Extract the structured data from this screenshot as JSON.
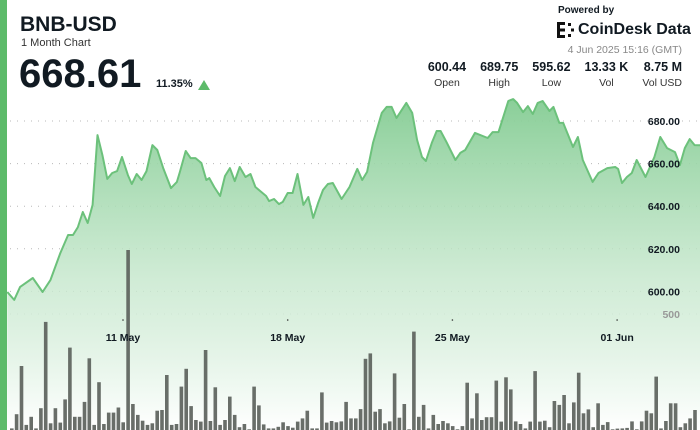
{
  "header": {
    "symbol": "BNB-USD",
    "subtitle": "1 Month Chart",
    "price": "668.61",
    "change": "11.35%",
    "change_direction": "up",
    "powered_by": "Powered by",
    "brand": "CoinDesk Data",
    "timestamp": "4 Jun 2025 15:16 (GMT)",
    "stats": [
      {
        "value": "600.44",
        "label": "Open"
      },
      {
        "value": "689.75",
        "label": "High"
      },
      {
        "value": "595.62",
        "label": "Low"
      },
      {
        "value": "13.33 K",
        "label": "Vol"
      },
      {
        "value": "8.75 M",
        "label": "Vol USD"
      }
    ]
  },
  "colors": {
    "accent": "#5dbb6a",
    "line": "#6cc17b",
    "fill_top": "#84cc93",
    "volume_bar": "#5c625c",
    "text": "#111a22"
  },
  "chart_data": {
    "type": "area",
    "title": "",
    "xlabel": "",
    "ylabel": "",
    "ylim": [
      585,
      692
    ],
    "y_ticks": [
      "600.00",
      "620.00",
      "640.00",
      "660.00",
      "680.00"
    ],
    "x_ticks": [
      {
        "date": "2025-05-11T00:00Z",
        "label": "11 May"
      },
      {
        "date": "2025-05-18T00:00Z",
        "label": "18 May"
      },
      {
        "date": "2025-05-25T00:00Z",
        "label": "25 May"
      },
      {
        "date": "2025-06-01T00:00Z",
        "label": "01 Jun"
      }
    ],
    "grid": true,
    "price": [
      [
        "2025-05-06T02:00Z",
        599.7
      ],
      [
        "2025-05-06T09:00Z",
        596.0
      ],
      [
        "2025-05-06T15:00Z",
        602.1
      ],
      [
        "2025-05-07T04:00Z",
        606.3
      ],
      [
        "2025-05-07T14:00Z",
        599.7
      ],
      [
        "2025-05-07T22:00Z",
        605.4
      ],
      [
        "2025-05-08T08:00Z",
        618.0
      ],
      [
        "2025-05-08T16:00Z",
        626.5
      ],
      [
        "2025-05-08T21:00Z",
        626.5
      ],
      [
        "2025-05-09T02:00Z",
        630.2
      ],
      [
        "2025-05-09T07:00Z",
        637.3
      ],
      [
        "2025-05-09T12:00Z",
        632.1
      ],
      [
        "2025-05-09T17:00Z",
        640.6
      ],
      [
        "2025-05-09T22:00Z",
        673.4
      ],
      [
        "2025-05-10T03:00Z",
        664.0
      ],
      [
        "2025-05-10T08:00Z",
        652.8
      ],
      [
        "2025-05-10T13:00Z",
        655.6
      ],
      [
        "2025-05-10T18:00Z",
        656.5
      ],
      [
        "2025-05-10T23:00Z",
        663.1
      ],
      [
        "2025-05-11T05:00Z",
        654.6
      ],
      [
        "2025-05-11T09:00Z",
        650.4
      ],
      [
        "2025-05-11T14:00Z",
        655.1
      ],
      [
        "2025-05-11T19:00Z",
        652.3
      ],
      [
        "2025-05-12T00:00Z",
        656.5
      ],
      [
        "2025-05-12T06:00Z",
        668.7
      ],
      [
        "2025-05-12T11:00Z",
        666.4
      ],
      [
        "2025-05-12T17:00Z",
        657.9
      ],
      [
        "2025-05-13T01:00Z",
        648.5
      ],
      [
        "2025-05-13T07:00Z",
        651.4
      ],
      [
        "2025-05-13T10:00Z",
        656.1
      ],
      [
        "2025-05-13T16:00Z",
        665.9
      ],
      [
        "2025-05-13T21:00Z",
        662.6
      ],
      [
        "2025-05-14T02:00Z",
        662.6
      ],
      [
        "2025-05-14T08:00Z",
        660.3
      ],
      [
        "2025-05-14T13:00Z",
        652.3
      ],
      [
        "2025-05-14T16:00Z",
        653.2
      ],
      [
        "2025-05-14T21:00Z",
        649.0
      ],
      [
        "2025-05-15T03:00Z",
        644.8
      ],
      [
        "2025-05-15T08:00Z",
        654.2
      ],
      [
        "2025-05-15T13:00Z",
        657.9
      ],
      [
        "2025-05-15T18:00Z",
        651.8
      ],
      [
        "2025-05-15T23:00Z",
        658.4
      ],
      [
        "2025-05-16T05:00Z",
        653.7
      ],
      [
        "2025-05-16T10:00Z",
        655.1
      ],
      [
        "2025-05-16T15:00Z",
        649.0
      ],
      [
        "2025-05-16T20:00Z",
        647.1
      ],
      [
        "2025-05-17T02:00Z",
        644.8
      ],
      [
        "2025-05-17T05:00Z",
        642.4
      ],
      [
        "2025-05-17T10:00Z",
        643.4
      ],
      [
        "2025-05-17T15:00Z",
        641.0
      ],
      [
        "2025-05-17T19:00Z",
        642.0
      ],
      [
        "2025-05-18T00:00Z",
        646.2
      ],
      [
        "2025-05-18T05:00Z",
        646.2
      ],
      [
        "2025-05-18T10:00Z",
        655.1
      ],
      [
        "2025-05-18T16:00Z",
        640.6
      ],
      [
        "2025-05-18T21:00Z",
        644.3
      ],
      [
        "2025-05-19T02:00Z",
        634.5
      ],
      [
        "2025-05-19T07:00Z",
        641.5
      ],
      [
        "2025-05-19T12:00Z",
        647.6
      ],
      [
        "2025-05-19T17:00Z",
        650.4
      ],
      [
        "2025-05-19T22:00Z",
        650.9
      ],
      [
        "2025-05-20T07:00Z",
        643.4
      ],
      [
        "2025-05-20T15:00Z",
        649.0
      ],
      [
        "2025-05-20T23:00Z",
        657.5
      ],
      [
        "2025-05-21T04:00Z",
        652.3
      ],
      [
        "2025-05-21T09:00Z",
        656.1
      ],
      [
        "2025-05-21T15:00Z",
        669.7
      ],
      [
        "2025-05-22T00:00Z",
        683.8
      ],
      [
        "2025-05-22T05:00Z",
        686.6
      ],
      [
        "2025-05-22T10:00Z",
        686.6
      ],
      [
        "2025-05-22T15:00Z",
        681.4
      ],
      [
        "2025-05-23T01:00Z",
        688.5
      ],
      [
        "2025-05-23T07:00Z",
        683.8
      ],
      [
        "2025-05-23T12:00Z",
        671.1
      ],
      [
        "2025-05-23T17:00Z",
        663.1
      ],
      [
        "2025-05-23T21:00Z",
        661.2
      ],
      [
        "2025-05-24T03:00Z",
        669.7
      ],
      [
        "2025-05-24T08:00Z",
        675.3
      ],
      [
        "2025-05-24T12:00Z",
        675.3
      ],
      [
        "2025-05-24T18:00Z",
        670.1
      ],
      [
        "2025-05-25T03:00Z",
        661.7
      ],
      [
        "2025-05-25T08:00Z",
        665.0
      ],
      [
        "2025-05-25T13:00Z",
        666.4
      ],
      [
        "2025-05-25T23:00Z",
        674.4
      ],
      [
        "2025-05-26T12:00Z",
        672.0
      ],
      [
        "2025-05-26T17:00Z",
        674.8
      ],
      [
        "2025-05-26T23:00Z",
        674.8
      ],
      [
        "2025-05-27T09:00Z",
        689.4
      ],
      [
        "2025-05-27T14:00Z",
        690.3
      ],
      [
        "2025-05-27T18:00Z",
        688.5
      ],
      [
        "2025-05-28T00:00Z",
        684.2
      ],
      [
        "2025-05-28T05:00Z",
        687.0
      ],
      [
        "2025-05-28T10:00Z",
        683.3
      ],
      [
        "2025-05-28T15:00Z",
        688.5
      ],
      [
        "2025-05-28T20:00Z",
        689.4
      ],
      [
        "2025-05-29T03:00Z",
        684.7
      ],
      [
        "2025-05-29T07:00Z",
        686.6
      ],
      [
        "2025-05-29T13:00Z",
        679.1
      ],
      [
        "2025-05-29T17:00Z",
        679.1
      ],
      [
        "2025-05-30T03:00Z",
        667.8
      ],
      [
        "2025-05-30T08:00Z",
        672.5
      ],
      [
        "2025-05-30T13:00Z",
        661.7
      ],
      [
        "2025-05-30T23:00Z",
        651.4
      ],
      [
        "2025-05-31T05:00Z",
        655.6
      ],
      [
        "2025-05-31T14:00Z",
        657.9
      ],
      [
        "2025-05-31T22:00Z",
        658.4
      ],
      [
        "2025-06-01T01:00Z",
        657.5
      ],
      [
        "2025-06-01T05:00Z",
        650.9
      ],
      [
        "2025-06-01T10:00Z",
        653.7
      ],
      [
        "2025-06-01T15:00Z",
        655.6
      ],
      [
        "2025-06-01T20:00Z",
        661.7
      ],
      [
        "2025-06-02T05:00Z",
        653.7
      ],
      [
        "2025-06-02T14:00Z",
        663.1
      ],
      [
        "2025-06-02T20:00Z",
        672.5
      ],
      [
        "2025-06-03T03:00Z",
        667.3
      ],
      [
        "2025-06-03T11:00Z",
        665.4
      ],
      [
        "2025-06-03T16:00Z",
        659.3
      ],
      [
        "2025-06-03T21:00Z",
        667.3
      ],
      [
        "2025-06-04T02:00Z",
        671.5
      ],
      [
        "2025-06-04T07:00Z",
        668.7
      ],
      [
        "2025-06-04T13:00Z",
        668.6
      ]
    ],
    "volume": {
      "tick": "500",
      "tick_value": 500,
      "values": [
        7,
        68,
        276,
        22,
        57,
        7,
        94,
        466,
        29,
        94,
        32,
        132,
        355,
        57,
        57,
        121,
        309,
        22,
        206,
        26,
        75,
        75,
        97,
        33,
        776,
        112,
        65,
        40,
        22,
        29,
        83,
        86,
        237,
        22,
        26,
        187,
        264,
        103,
        43,
        36,
        345,
        39,
        184,
        22,
        43,
        144,
        65,
        12,
        26,
        3,
        187,
        106,
        24,
        7,
        7,
        14,
        33,
        17,
        10,
        36,
        50,
        83,
        7,
        7,
        162,
        32,
        39,
        33,
        37,
        121,
        50,
        50,
        90,
        307,
        330,
        79,
        90,
        29,
        37,
        244,
        53,
        112,
        3,
        424,
        57,
        108,
        7,
        65,
        26,
        39,
        29,
        17,
        3,
        17,
        204,
        50,
        158,
        43,
        55,
        55,
        213,
        36,
        227,
        175,
        37,
        26,
        7,
        36,
        254,
        36,
        40,
        12,
        125,
        108,
        151,
        29,
        119,
        247,
        72,
        89,
        12,
        115,
        22,
        34,
        3,
        6,
        7,
        9,
        37,
        3,
        37,
        83,
        72,
        230,
        7,
        39,
        115,
        115,
        12,
        29,
        50,
        86
      ]
    }
  }
}
